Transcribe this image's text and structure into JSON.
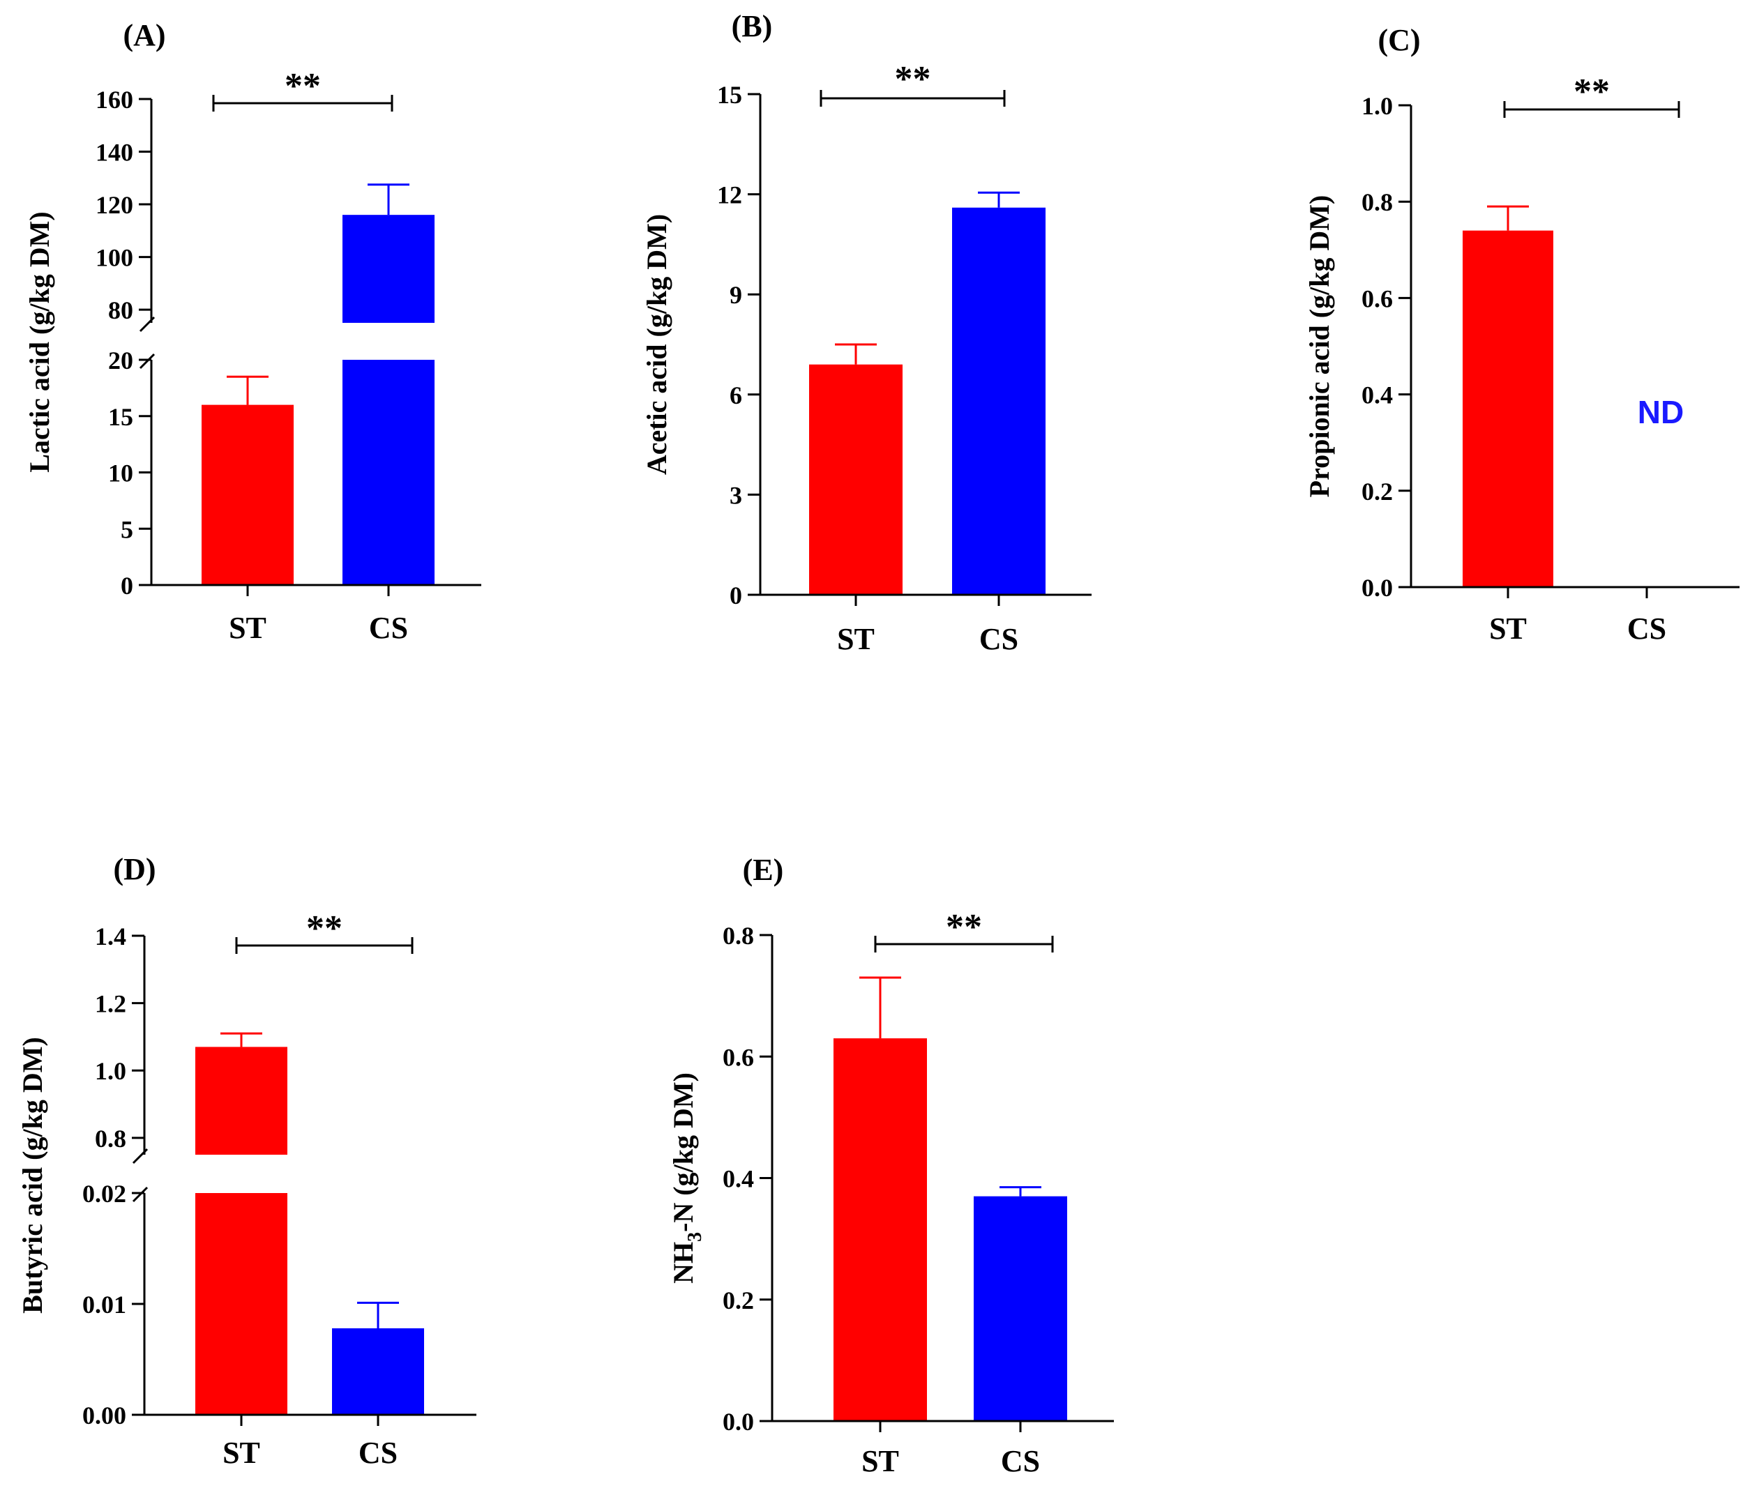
{
  "colors": {
    "st": "#ff0000",
    "cs": "#0000ff",
    "axis": "#000000",
    "nd": "#1a1aff"
  },
  "chart_data": [
    {
      "id": "A",
      "type": "bar",
      "panel_label": "(A)",
      "ylabel": "Lactic acid (g/kg DM)",
      "categories": [
        "ST",
        "CS"
      ],
      "values": [
        16,
        116
      ],
      "errors": [
        2.5,
        11.5
      ],
      "significance": "**",
      "axis_break": {
        "lower": [
          0,
          20
        ],
        "upper": [
          75,
          160
        ]
      },
      "lower_ticks": [
        0,
        5,
        10,
        15,
        20
      ],
      "upper_ticks": [
        80,
        100,
        120,
        140,
        160
      ]
    },
    {
      "id": "B",
      "type": "bar",
      "panel_label": "(B)",
      "ylabel": "Acetic acid (g/kg DM)",
      "categories": [
        "ST",
        "CS"
      ],
      "values": [
        6.9,
        11.6
      ],
      "errors": [
        0.6,
        0.45
      ],
      "significance": "**",
      "ylim": [
        0,
        15
      ],
      "ticks": [
        0,
        3,
        6,
        9,
        12,
        15
      ]
    },
    {
      "id": "C",
      "type": "bar",
      "panel_label": "(C)",
      "ylabel": "Propionic acid (g/kg DM)",
      "categories": [
        "ST",
        "CS"
      ],
      "values": [
        0.74,
        0
      ],
      "errors": [
        0.05,
        0
      ],
      "significance": "**",
      "ylim": [
        0,
        1.0
      ],
      "ticks": [
        "0.0",
        "0.2",
        "0.4",
        "0.6",
        "0.8",
        "1.0"
      ],
      "nd_label": "ND",
      "nd_category": "CS"
    },
    {
      "id": "D",
      "type": "bar",
      "panel_label": "(D)",
      "ylabel": "Butyric acid (g/kg DM)",
      "categories": [
        "ST",
        "CS"
      ],
      "values": [
        1.07,
        0.0078
      ],
      "errors": [
        0.04,
        0.0023
      ],
      "significance": "**",
      "axis_break": {
        "lower": [
          0,
          0.02
        ],
        "upper": [
          0.75,
          1.4
        ]
      },
      "lower_ticks": [
        "0.00",
        "0.01",
        "0.02"
      ],
      "upper_ticks": [
        "0.8",
        "1.0",
        "1.2",
        "1.4"
      ]
    },
    {
      "id": "E",
      "type": "bar",
      "panel_label": "(E)",
      "ylabel": "NH",
      "ylabel_sub": "3",
      "ylabel_rest": "-N (g/kg DM)",
      "categories": [
        "ST",
        "CS"
      ],
      "values": [
        0.63,
        0.37
      ],
      "errors": [
        0.1,
        0.015
      ],
      "significance": "**",
      "ylim": [
        0,
        0.8
      ],
      "ticks": [
        "0.0",
        "0.2",
        "0.4",
        "0.6",
        "0.8"
      ]
    }
  ]
}
